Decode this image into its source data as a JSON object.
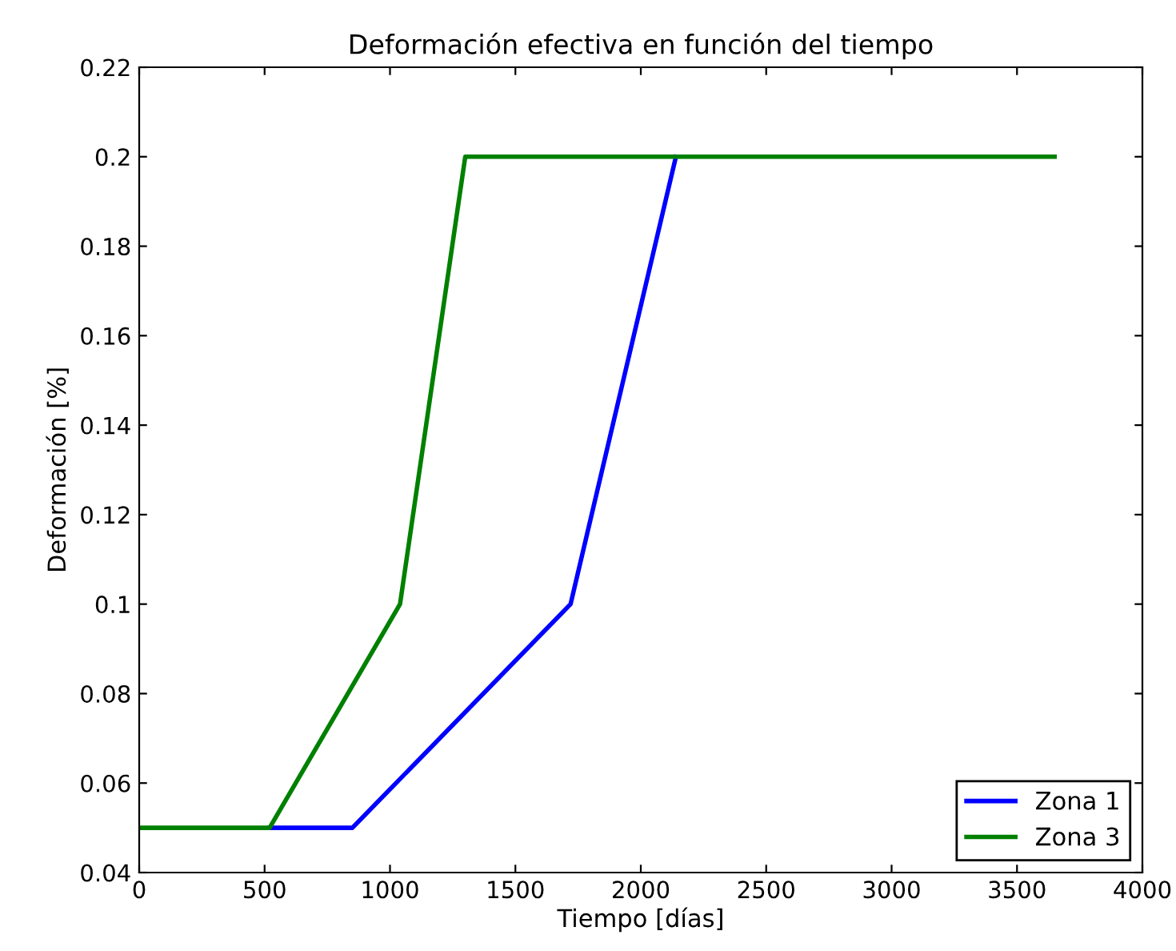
{
  "chart_data": {
    "type": "line",
    "title": "Deformación efectiva en función del tiempo",
    "xlabel": "Tiempo [días]",
    "ylabel": "Deformación [%]",
    "series": [
      {
        "name": "Zona 1",
        "color": "#0000ff",
        "x": [
          520,
          850,
          1720,
          2140
        ],
        "values": [
          0.05,
          0.05,
          0.1,
          0.2
        ]
      },
      {
        "name": "Zona 3",
        "color": "#008000",
        "x": [
          0,
          520,
          1040,
          1300,
          3650
        ],
        "values": [
          0.05,
          0.05,
          0.1,
          0.2,
          0.2
        ]
      }
    ],
    "xlim": [
      0,
      4000
    ],
    "xticks": [
      0,
      500,
      1000,
      1500,
      2000,
      2500,
      3000,
      3500,
      4000
    ],
    "ylim": [
      0.04,
      0.22
    ],
    "yticks": [
      0.04,
      0.06,
      0.08,
      0.1,
      0.12,
      0.14,
      0.16,
      0.18,
      0.2,
      0.22
    ],
    "grid": false,
    "legend": "bottom right",
    "line_style": "solid",
    "marker": "none"
  }
}
